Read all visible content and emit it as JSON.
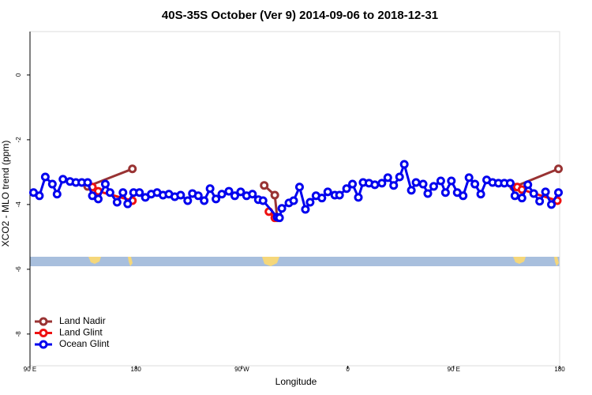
{
  "chart_data": {
    "type": "line",
    "title": "40S-35S October (Ver 9)   2014-09-06 to 2018-12-31",
    "x_label": "Longitude",
    "y_label": "XCO2 - MLO trend (ppm)",
    "xlim": [
      90,
      540
    ],
    "ylim": [
      -8.98,
      1.34
    ],
    "xticks": [
      {
        "value": 90,
        "label": "90 E"
      },
      {
        "value": 180,
        "label": "180"
      },
      {
        "value": 270,
        "label": "90 W"
      },
      {
        "value": 360,
        "label": "0"
      },
      {
        "value": 450,
        "label": "90 E"
      },
      {
        "value": 540,
        "label": "180"
      }
    ],
    "yticks": [
      0,
      -2,
      -4,
      -6,
      -8
    ],
    "legend_position": "lower left",
    "series": [
      {
        "name": "Land Nadir",
        "color": "#993333",
        "x": [
          139,
          177,
          230,
          289,
          298,
          300,
          400,
          501,
          539
        ],
        "values": [
          -3.44,
          -2.9,
          null,
          -3.41,
          -3.71,
          -4.41,
          null,
          -3.46,
          -2.9
        ]
      },
      {
        "name": "Land Glint",
        "color": "#ee1111",
        "x": [
          143,
          148,
          177,
          230,
          293,
          298,
          400,
          504,
          508,
          538
        ],
        "values": [
          -3.46,
          -3.59,
          -3.88,
          null,
          -4.22,
          -4.41,
          null,
          -3.46,
          -3.54,
          -3.88
        ]
      },
      {
        "name": "Ocean Glint",
        "color": "#0000ee",
        "x": [
          93,
          98,
          103,
          109,
          113,
          118,
          124,
          129,
          134,
          139,
          143,
          148,
          154,
          158,
          164,
          169,
          173,
          178,
          183,
          188,
          193,
          198,
          203,
          208,
          213,
          218,
          224,
          228,
          233,
          238,
          243,
          248,
          253,
          259,
          264,
          269,
          274,
          279,
          284,
          288,
          300,
          302,
          304,
          310,
          314,
          319,
          324,
          328,
          333,
          338,
          343,
          349,
          353,
          359,
          364,
          369,
          373,
          378,
          383,
          389,
          394,
          399,
          404,
          408,
          414,
          418,
          424,
          428,
          433,
          439,
          443,
          448,
          453,
          458,
          463,
          468,
          473,
          478,
          483,
          488,
          493,
          498,
          502,
          508,
          513,
          518,
          523,
          528,
          533,
          539
        ],
        "values": [
          -3.63,
          -3.73,
          -3.15,
          -3.37,
          -3.68,
          -3.22,
          -3.29,
          -3.32,
          -3.32,
          -3.32,
          -3.73,
          -3.83,
          -3.37,
          -3.63,
          -3.93,
          -3.63,
          -3.98,
          -3.63,
          -3.63,
          -3.78,
          -3.68,
          -3.63,
          -3.71,
          -3.68,
          -3.76,
          -3.71,
          -3.88,
          -3.66,
          -3.73,
          -3.88,
          -3.51,
          -3.83,
          -3.68,
          -3.59,
          -3.73,
          -3.61,
          -3.73,
          -3.68,
          -3.85,
          -3.88,
          -4.39,
          -4.41,
          -4.12,
          -3.95,
          -3.88,
          -3.46,
          -4.15,
          -3.93,
          -3.73,
          -3.8,
          -3.61,
          -3.71,
          -3.71,
          -3.51,
          -3.37,
          -3.78,
          -3.32,
          -3.34,
          -3.39,
          -3.34,
          -3.17,
          -3.41,
          -3.15,
          -2.76,
          -3.56,
          -3.32,
          -3.37,
          -3.66,
          -3.44,
          -3.27,
          -3.63,
          -3.27,
          -3.63,
          -3.73,
          -3.17,
          -3.37,
          -3.68,
          -3.24,
          -3.32,
          -3.34,
          -3.34,
          -3.34,
          -3.73,
          -3.8,
          -3.39,
          -3.66,
          -3.9,
          -3.61,
          -4.0,
          -3.63
        ]
      }
    ]
  }
}
